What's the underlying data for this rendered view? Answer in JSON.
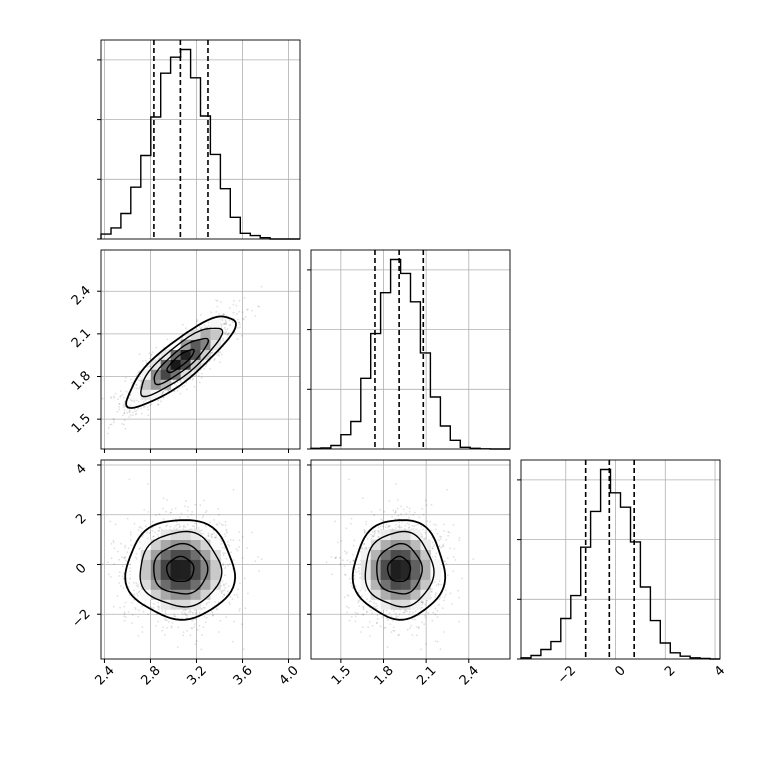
{
  "chart_data": {
    "type": "corner",
    "params": [
      {
        "name": "",
        "range": [
          2.37,
          4.1
        ],
        "ticks": [
          "2.4",
          "2.8",
          "3.2",
          "3.6",
          "4.0"
        ],
        "tick_values": [
          2.4,
          2.8,
          3.2,
          3.6,
          4.0
        ],
        "mean": 3.06,
        "sd": 0.235,
        "quantiles": [
          2.83,
          3.06,
          3.3
        ]
      },
      {
        "name": "",
        "range": [
          1.29,
          2.69
        ],
        "ticks": [
          "1.5",
          "1.8",
          "2.1",
          "2.4"
        ],
        "tick_values": [
          1.5,
          1.8,
          2.1,
          2.4
        ],
        "mean": 1.91,
        "sd": 0.16,
        "quantiles": [
          1.74,
          1.91,
          2.08
        ]
      },
      {
        "name": "",
        "range": [
          -3.8,
          4.2
        ],
        "ticks": [
          "−2",
          "0",
          "2",
          "4"
        ],
        "tick_values": [
          -2,
          0,
          2,
          4
        ],
        "mean": -0.2,
        "sd": 1.0,
        "quantiles": [
          -1.2,
          -0.25,
          0.75
        ]
      }
    ],
    "correlations": {
      "0-1": 0.85,
      "0-2": 0.0,
      "1-2": 0.0
    },
    "y_ticks_left": {
      "row1": {
        "ticks": [
          "1.5",
          "1.8",
          "2.1",
          "2.4"
        ],
        "tick_values": [
          1.5,
          1.8,
          2.1,
          2.4
        ]
      },
      "row2": {
        "ticks": [
          "−2",
          "0",
          "2",
          "4"
        ],
        "tick_values": [
          -2,
          0,
          2,
          4
        ]
      }
    },
    "histogram_bins": 20,
    "contour_levels": [
      0.118,
      0.393,
      0.675,
      0.865
    ],
    "grid": true,
    "quantile_line_style": "dashed",
    "colors": {
      "ink": "#000000",
      "grid": "#b0b0b0",
      "points": "#000000"
    }
  }
}
